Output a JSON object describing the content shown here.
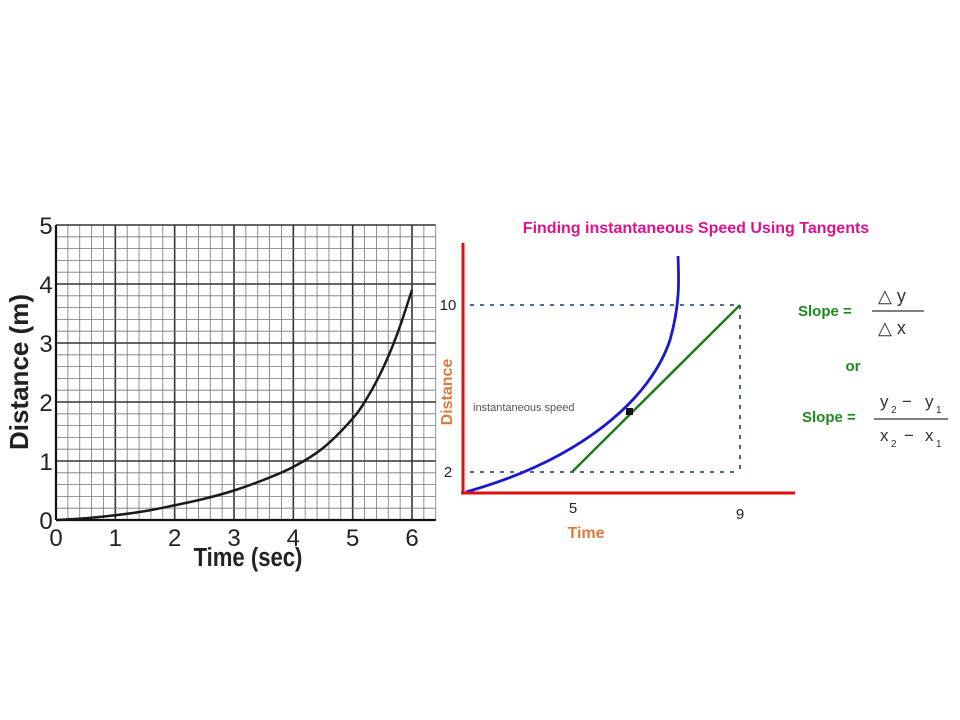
{
  "chart_data": [
    {
      "type": "line",
      "title": "",
      "xlabel": "Time (sec)",
      "ylabel": "Distance (m)",
      "xlim": [
        0,
        6
      ],
      "ylim": [
        0,
        5
      ],
      "x_ticks": [
        0,
        1,
        2,
        3,
        4,
        5,
        6
      ],
      "y_ticks": [
        0,
        1,
        2,
        3,
        4,
        5
      ],
      "grid": true,
      "series": [
        {
          "name": "",
          "color": "#1a1a1a",
          "x": [
            0,
            0.5,
            1,
            1.5,
            2,
            2.5,
            3,
            3.5,
            4,
            4.5,
            5,
            5.25,
            5.5,
            5.75,
            6
          ],
          "y": [
            0,
            0.03,
            0.08,
            0.15,
            0.25,
            0.36,
            0.5,
            0.68,
            0.9,
            1.22,
            1.72,
            2.08,
            2.55,
            3.15,
            3.9
          ]
        }
      ]
    },
    {
      "type": "line",
      "title": "Finding instantaneous Speed Using Tangents",
      "xlabel": "Time",
      "ylabel": "Distance",
      "x_ticks": [
        5,
        9
      ],
      "y_ticks": [
        2,
        10
      ],
      "annotation": "instantaneous speed",
      "curve_color": "#1a1acc",
      "tangent_color": "#1e7a1e",
      "axis_color": "#dd1111",
      "title_color": "#e0118c",
      "label_color": "#e07a3c",
      "formula_color": "#1e8a1e"
    }
  ],
  "formulas": {
    "slope_label": "Slope =",
    "delta_y": "△ y",
    "delta_x": "△ x",
    "or": "or",
    "y2": "y",
    "y2_sub": "2",
    "y1": "y",
    "y1_sub": "1",
    "x2": "x",
    "x2_sub": "2",
    "x1": "x",
    "x1_sub": "1",
    "minus": "−"
  }
}
